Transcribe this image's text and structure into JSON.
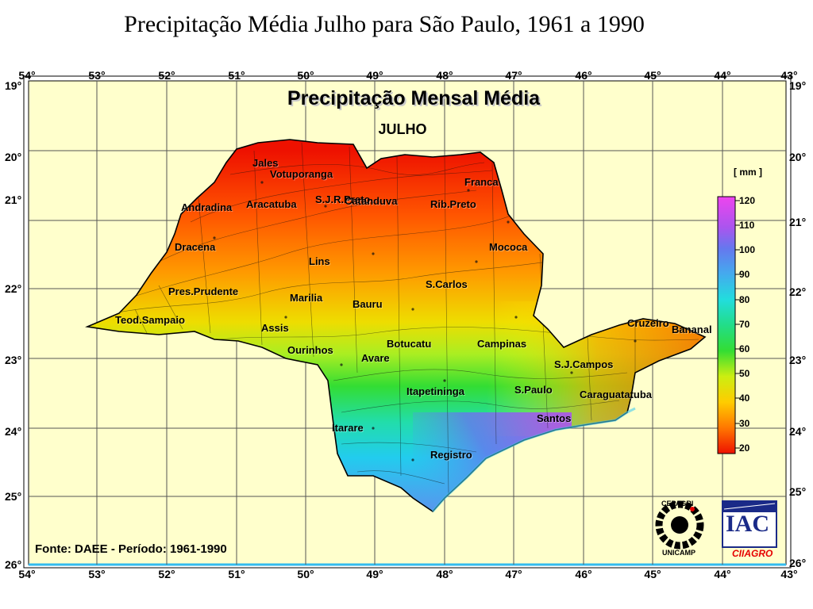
{
  "page_title": "Precipitação Média Julho para São Paulo, 1961 a 1990",
  "map": {
    "title": "Precipitação Mensal Média",
    "subtitle": "JULHO",
    "source": "Fonte: DAEE - Período: 1961-1990",
    "longitudes": [
      "54°",
      "53°",
      "52°",
      "51°",
      "50°",
      "49°",
      "48°",
      "47°",
      "46°",
      "45°",
      "44°",
      "43°"
    ],
    "latitudes": [
      "19°",
      "20°",
      "21°",
      "22°",
      "23°",
      "24°",
      "25°",
      "26°"
    ],
    "cities": [
      "Jales",
      "Votuporanga",
      "Franca",
      "S.J.R.Preto",
      "Andradina",
      "Aracatuba",
      "Catanduva",
      "Rib.Preto",
      "Dracena",
      "Mococa",
      "Lins",
      "S.Carlos",
      "Pres.Prudente",
      "Marilia",
      "Bauru",
      "Teod.Sampaio",
      "Assis",
      "Ourinhos",
      "Botucatu",
      "Avare",
      "Campinas",
      "Cruzeiro",
      "Bananal",
      "S.J.Campos",
      "Itapetininga",
      "S.Paulo",
      "Caraguatatuba",
      "Santos",
      "Itarare",
      "Registro"
    ],
    "legend": {
      "unit": "[ mm ]",
      "ticks": [
        "120",
        "110",
        "100",
        "90",
        "80",
        "70",
        "60",
        "50",
        "40",
        "30",
        "20"
      ],
      "colors": [
        "#ee44ee",
        "#aa55ee",
        "#6677ee",
        "#44aaee",
        "#22dddd",
        "#22ddaa",
        "#33dd33",
        "#aaee22",
        "#eeee00",
        "#ffaa00",
        "#ff6600",
        "#ee1100"
      ]
    },
    "logos": {
      "cepagri_top": "CEPAGRI",
      "cepagri_bottom": "UNICAMP",
      "iac": "IAC",
      "ciiagro": "CIIAGRO"
    },
    "colors": {
      "background": "#ffffcc",
      "grid": "#555555",
      "border_water": "#33bbee"
    }
  }
}
